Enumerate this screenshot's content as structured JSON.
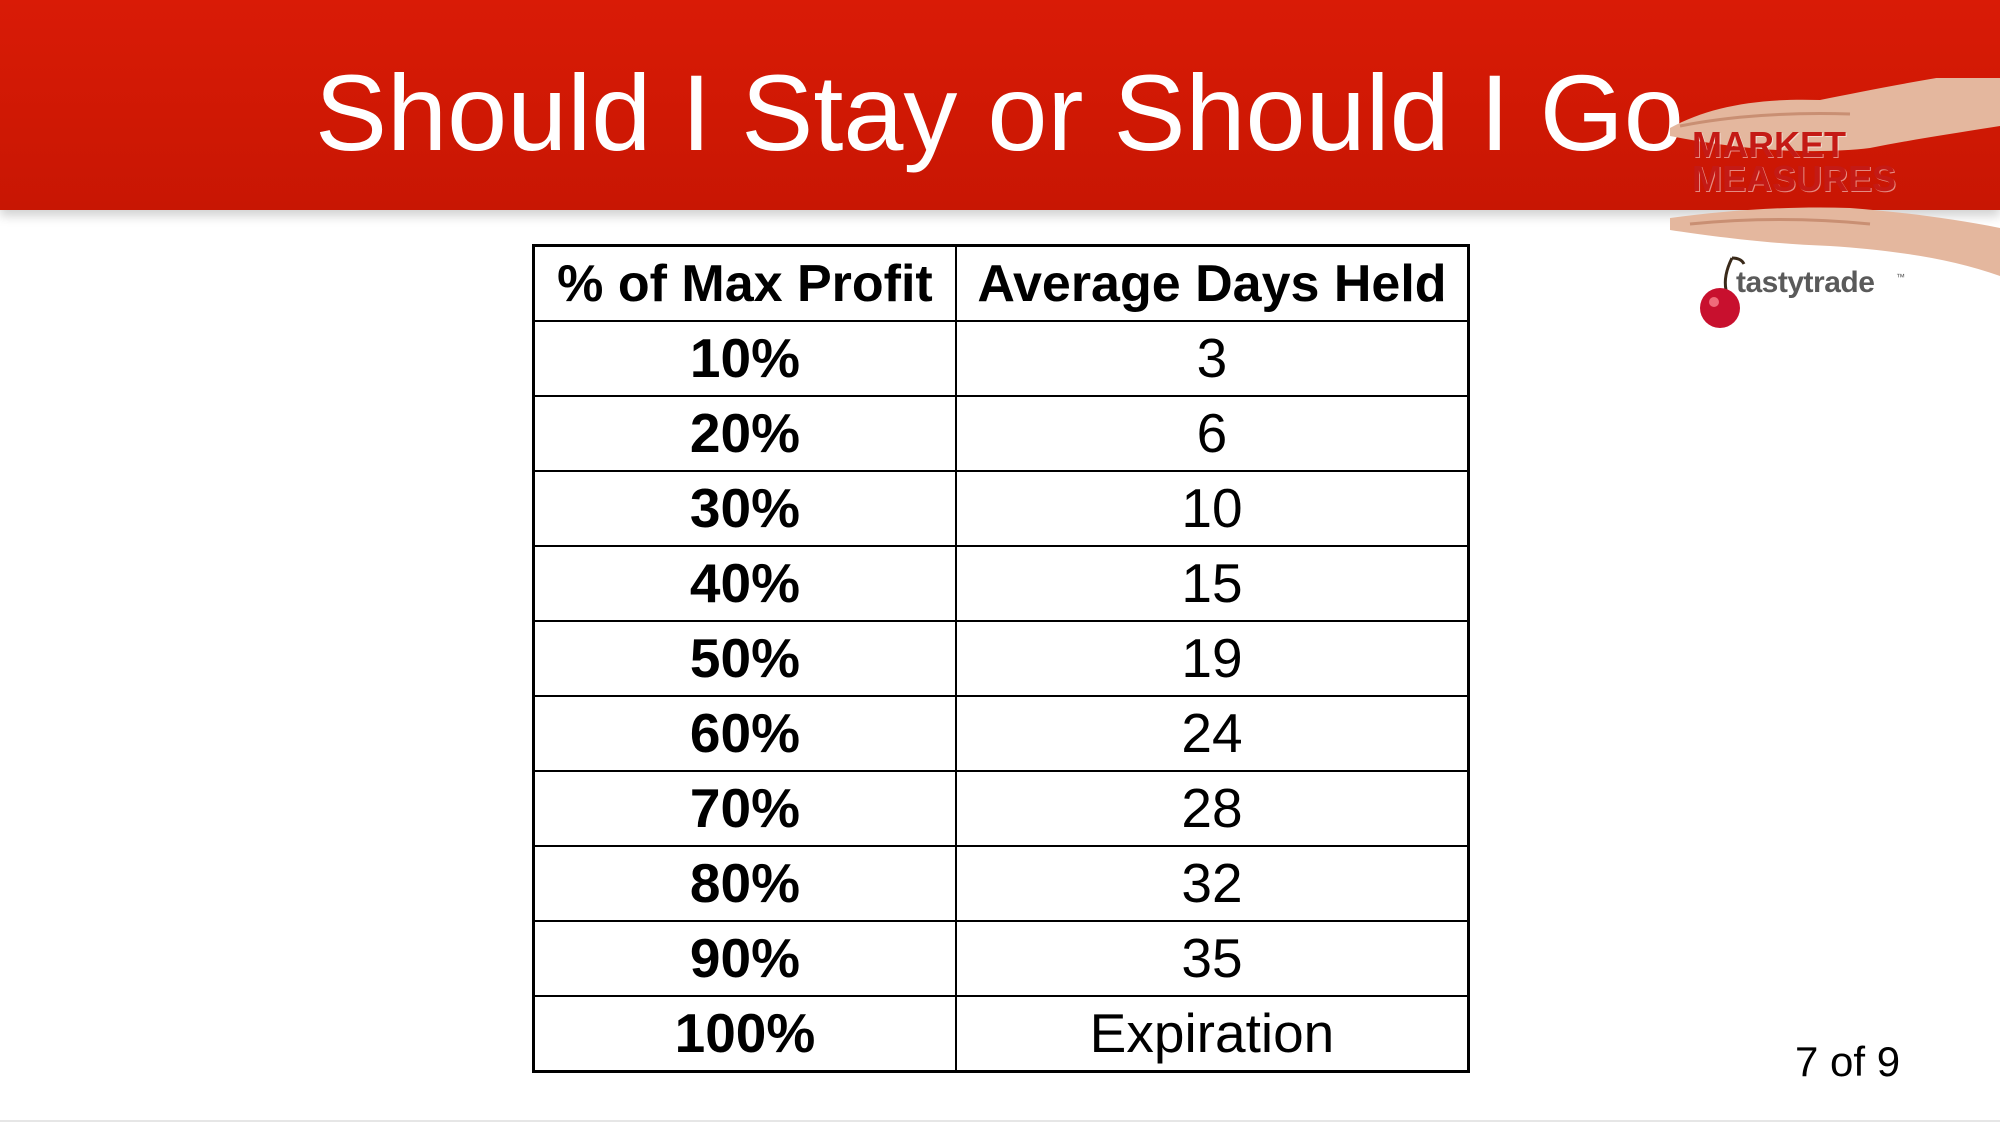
{
  "slide": {
    "title": "Should I Stay or Should I Go",
    "page_indicator": "7 of 9"
  },
  "logos": {
    "market_measures": "MARKET\nMEASURES",
    "tastytrade": "tastytrade",
    "tastytrade_tm": "™"
  },
  "colors": {
    "title_bar": "#d91b06",
    "title_text": "#ffffff",
    "logo_red": "#c41a15"
  },
  "table": {
    "headers": [
      "% of Max Profit",
      "Average Days Held"
    ],
    "rows": [
      [
        "10%",
        "3"
      ],
      [
        "20%",
        "6"
      ],
      [
        "30%",
        "10"
      ],
      [
        "40%",
        "15"
      ],
      [
        "50%",
        "19"
      ],
      [
        "60%",
        "24"
      ],
      [
        "70%",
        "28"
      ],
      [
        "80%",
        "32"
      ],
      [
        "90%",
        "35"
      ],
      [
        "100%",
        "Expiration"
      ]
    ]
  }
}
